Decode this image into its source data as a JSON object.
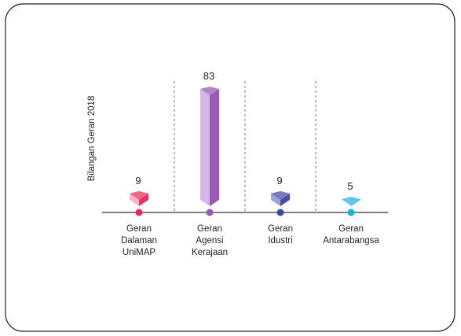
{
  "chart_data": {
    "type": "bar",
    "title": "",
    "xlabel": "",
    "ylabel": "Bilangan Geran 2018",
    "categories": [
      [
        "Geran",
        "Dalaman",
        "UniMAP"
      ],
      [
        "Geran",
        "Agensi",
        "Kerajaan"
      ],
      [
        "Geran",
        "Idustri"
      ],
      [
        "Geran",
        "Antarabangsa"
      ]
    ],
    "values": [
      9,
      83,
      9,
      5
    ],
    "ylim": [
      0,
      83
    ],
    "grid": false,
    "colors": {
      "bars": [
        "#e8335f",
        "#9b59b6",
        "#4a4fa3",
        "#2db3e6"
      ],
      "bar_light": [
        "#ffb0c4",
        "#d9b6ea",
        "#9fa3dd",
        "#bfe9fb"
      ],
      "markers": [
        "#e8246c",
        "#9b59b6",
        "#3b4aa0",
        "#1ab0e8"
      ],
      "axis": "#555555",
      "divider": "#777777",
      "frame": "#222222"
    }
  }
}
